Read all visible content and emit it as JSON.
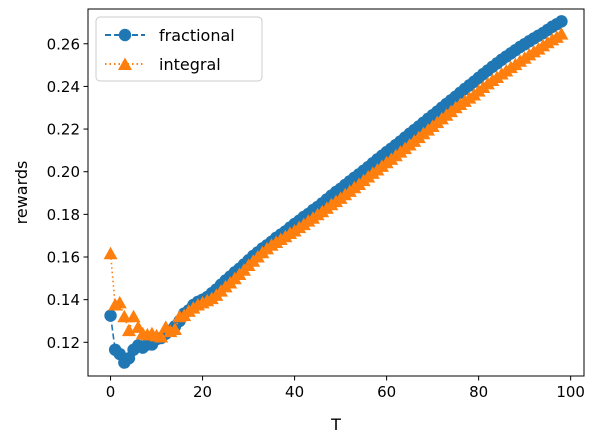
{
  "chart_data": {
    "type": "line",
    "title": "",
    "xlabel": "T",
    "ylabel": "rewards",
    "xlim": [
      -4.9,
      102.9
    ],
    "ylim": [
      0.1042,
      0.2763
    ],
    "xticks": [
      0,
      20,
      40,
      60,
      80,
      100
    ],
    "yticks": [
      0.12,
      0.14,
      0.16,
      0.18,
      0.2,
      0.22,
      0.24,
      0.26
    ],
    "ytick_labels": [
      "0.12",
      "0.14",
      "0.16",
      "0.18",
      "0.20",
      "0.22",
      "0.24",
      "0.26"
    ],
    "grid": false,
    "legend_position": "top-left",
    "series": [
      {
        "name": "fractional",
        "color": "#1f77b4",
        "line_style": "dashed",
        "marker": "circle",
        "x": [
          0,
          1,
          2,
          3,
          4,
          5,
          6,
          7,
          8,
          9,
          10,
          11,
          12,
          13,
          14,
          15,
          16,
          17,
          18,
          19,
          20,
          21,
          22,
          23,
          24,
          25,
          26,
          27,
          28,
          29,
          30,
          31,
          32,
          33,
          34,
          35,
          36,
          37,
          38,
          39,
          40,
          41,
          42,
          43,
          44,
          45,
          46,
          47,
          48,
          49,
          50,
          51,
          52,
          53,
          54,
          55,
          56,
          57,
          58,
          59,
          60,
          61,
          62,
          63,
          64,
          65,
          66,
          67,
          68,
          69,
          70,
          71,
          72,
          73,
          74,
          75,
          76,
          77,
          78,
          79,
          80,
          81,
          82,
          83,
          84,
          85,
          86,
          87,
          88,
          89,
          90,
          91,
          92,
          93,
          94,
          95,
          96,
          97,
          98
        ],
        "y": [
          0.1325,
          0.1165,
          0.1145,
          0.1105,
          0.1125,
          0.1165,
          0.1185,
          0.1175,
          0.119,
          0.119,
          0.1215,
          0.122,
          0.124,
          0.1255,
          0.1275,
          0.13,
          0.1335,
          0.135,
          0.1375,
          0.139,
          0.14,
          0.1412,
          0.143,
          0.1448,
          0.147,
          0.149,
          0.1508,
          0.1528,
          0.1545,
          0.1565,
          0.1585,
          0.1605,
          0.1622,
          0.164,
          0.1655,
          0.1672,
          0.169,
          0.1705,
          0.172,
          0.1738,
          0.1755,
          0.177,
          0.1788,
          0.1802,
          0.182,
          0.1835,
          0.1852,
          0.187,
          0.1888,
          0.1905,
          0.192,
          0.1938,
          0.1955,
          0.1972,
          0.1988,
          0.2005,
          0.2022,
          0.204,
          0.2058,
          0.2075,
          0.2092,
          0.2108,
          0.2125,
          0.2142,
          0.216,
          0.2178,
          0.2195,
          0.2212,
          0.223,
          0.2248,
          0.2265,
          0.2282,
          0.23,
          0.2318,
          0.2335,
          0.2352,
          0.237,
          0.2388,
          0.2405,
          0.2422,
          0.244,
          0.2458,
          0.2475,
          0.2492,
          0.2508,
          0.2525,
          0.254,
          0.2555,
          0.257,
          0.2585,
          0.2598,
          0.2612,
          0.2625,
          0.2638,
          0.265,
          0.2665,
          0.268,
          0.2692,
          0.2705
        ]
      },
      {
        "name": "integral",
        "color": "#ff7f0e",
        "line_style": "dotted",
        "marker": "triangle-up",
        "x": [
          0,
          1,
          2,
          3,
          4,
          5,
          6,
          7,
          8,
          9,
          10,
          11,
          12,
          13,
          14,
          15,
          16,
          17,
          18,
          19,
          20,
          21,
          22,
          23,
          24,
          25,
          26,
          27,
          28,
          29,
          30,
          31,
          32,
          33,
          34,
          35,
          36,
          37,
          38,
          39,
          40,
          41,
          42,
          43,
          44,
          45,
          46,
          47,
          48,
          49,
          50,
          51,
          52,
          53,
          54,
          55,
          56,
          57,
          58,
          59,
          60,
          61,
          62,
          63,
          64,
          65,
          66,
          67,
          68,
          69,
          70,
          71,
          72,
          73,
          74,
          75,
          76,
          77,
          78,
          79,
          80,
          81,
          82,
          83,
          84,
          85,
          86,
          87,
          88,
          89,
          90,
          91,
          92,
          93,
          94,
          95,
          96,
          97,
          98
        ],
        "y": [
          0.1615,
          0.1375,
          0.1385,
          0.132,
          0.1255,
          0.132,
          0.127,
          0.124,
          0.1235,
          0.124,
          0.123,
          0.1225,
          0.127,
          0.125,
          0.126,
          0.132,
          0.1325,
          0.1345,
          0.136,
          0.1375,
          0.1385,
          0.1395,
          0.1405,
          0.142,
          0.144,
          0.146,
          0.1478,
          0.1498,
          0.1518,
          0.1538,
          0.156,
          0.158,
          0.16,
          0.162,
          0.1638,
          0.1655,
          0.1668,
          0.1682,
          0.1695,
          0.171,
          0.1722,
          0.1738,
          0.1752,
          0.1768,
          0.1782,
          0.1798,
          0.1812,
          0.1828,
          0.1845,
          0.186,
          0.1875,
          0.1892,
          0.1908,
          0.1925,
          0.194,
          0.1958,
          0.1975,
          0.1992,
          0.2008,
          0.2025,
          0.2042,
          0.2058,
          0.2075,
          0.2092,
          0.2108,
          0.2125,
          0.2142,
          0.216,
          0.2178,
          0.2195,
          0.2212,
          0.223,
          0.2248,
          0.2265,
          0.2282,
          0.23,
          0.2315,
          0.233,
          0.2345,
          0.236,
          0.2378,
          0.2395,
          0.2412,
          0.2428,
          0.2442,
          0.2458,
          0.2472,
          0.2488,
          0.2502,
          0.2518,
          0.2532,
          0.2548,
          0.2562,
          0.2575,
          0.259,
          0.2605,
          0.2618,
          0.263,
          0.2645
        ]
      }
    ]
  }
}
